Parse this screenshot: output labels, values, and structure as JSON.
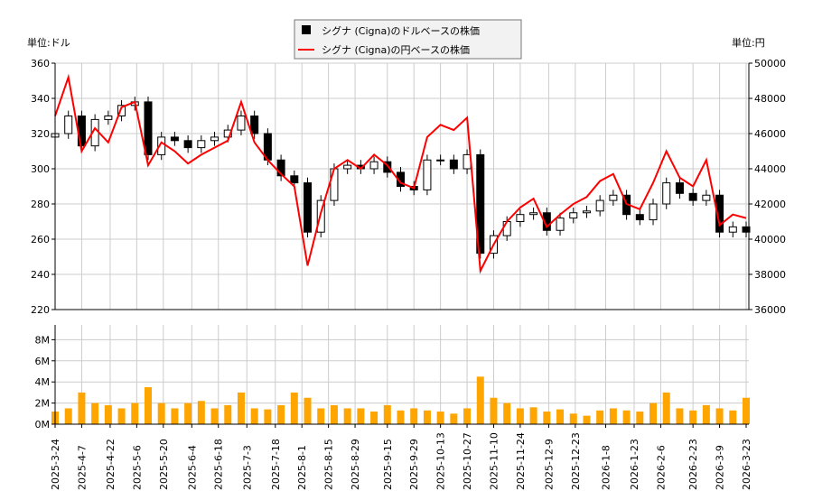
{
  "chart_data": [
    {
      "type": "candlestick+line",
      "left_unit_label": "単位:ドル",
      "right_unit_label": "単位:円",
      "legend": [
        {
          "label": "シグナ (Cigna)のドルベースの株価",
          "color": "#000000",
          "marker": "square"
        },
        {
          "label": "シグナ (Cigna)の円ベースの株価",
          "color": "#ff0000",
          "marker": "line"
        }
      ],
      "legend_placement": "top-center",
      "grid": true,
      "ylim_left": [
        220,
        360
      ],
      "ylim_right": [
        36000,
        50000
      ],
      "yticks_left": [
        "360",
        "340",
        "320",
        "300",
        "280",
        "260",
        "240",
        "220"
      ],
      "yticks_right": [
        "50000",
        "48000",
        "46000",
        "44000",
        "42000",
        "40000",
        "38000",
        "36000"
      ],
      "xticks": [
        "2025-3-24",
        "2025-4-7",
        "2025-4-22",
        "2025-5-6",
        "2025-5-20",
        "2025-6-4",
        "2025-6-18",
        "2025-7-3",
        "2025-7-18",
        "2025-8-1",
        "2025-8-15",
        "2025-8-29",
        "2025-9-15",
        "2025-9-29",
        "2025-10-13",
        "2025-10-27",
        "2025-11-10",
        "2025-11-24",
        "2025-12-9",
        "2025-12-23",
        "2026-1-8",
        "2026-1-23",
        "2026-2-6",
        "2026-2-23",
        "2026-3-9",
        "2026-3-23"
      ],
      "dates": [
        "2025-03-24",
        "2025-03-31",
        "2025-04-07",
        "2025-04-14",
        "2025-04-21",
        "2025-04-28",
        "2025-05-05",
        "2025-05-12",
        "2025-05-19",
        "2025-05-26",
        "2025-06-02",
        "2025-06-09",
        "2025-06-16",
        "2025-06-23",
        "2025-06-30",
        "2025-07-07",
        "2025-07-14",
        "2025-07-21",
        "2025-07-28",
        "2025-08-04",
        "2025-08-11",
        "2025-08-18",
        "2025-08-25",
        "2025-09-01",
        "2025-09-08",
        "2025-09-15",
        "2025-09-22",
        "2025-09-29",
        "2025-10-06",
        "2025-10-13",
        "2025-10-20",
        "2025-10-27",
        "2025-11-03",
        "2025-11-10",
        "2025-11-17",
        "2025-11-24",
        "2025-12-01",
        "2025-12-08",
        "2025-12-15",
        "2025-12-22",
        "2025-12-29",
        "2026-01-05",
        "2026-01-12",
        "2026-01-19",
        "2026-01-26",
        "2026-02-02",
        "2026-02-09",
        "2026-02-16",
        "2026-02-23",
        "2026-03-02",
        "2026-03-09",
        "2026-03-16",
        "2026-03-23"
      ],
      "usd_close": [
        320,
        330,
        313,
        328,
        330,
        336,
        338,
        308,
        318,
        316,
        312,
        316,
        318,
        322,
        330,
        320,
        305,
        296,
        292,
        264,
        282,
        300,
        302,
        300,
        304,
        298,
        290,
        288,
        305,
        305,
        300,
        308,
        252,
        262,
        270,
        274,
        275,
        265,
        272,
        275,
        276,
        282,
        285,
        274,
        271,
        280,
        292,
        286,
        282,
        285,
        264,
        267,
        264
      ],
      "jpy_close": [
        47000,
        49200,
        45000,
        46300,
        45500,
        47500,
        47800,
        44200,
        45500,
        45000,
        44300,
        44800,
        45200,
        45600,
        47800,
        45500,
        44500,
        43700,
        43000,
        38500,
        41500,
        44000,
        44500,
        44000,
        44800,
        44200,
        43200,
        42900,
        45800,
        46500,
        46200,
        46900,
        38200,
        39700,
        41000,
        41800,
        42300,
        40700,
        41400,
        42000,
        42400,
        43300,
        43700,
        42000,
        41700,
        43200,
        45000,
        43500,
        43000,
        44500,
        40800,
        41400,
        41200
      ]
    },
    {
      "type": "bar",
      "series_color": "#ffa500",
      "ylim": [
        0,
        9.4
      ],
      "yticks": [
        "8M",
        "6M",
        "4M",
        "2M",
        "0M"
      ],
      "volume_millions": [
        1.2,
        1.5,
        3.0,
        2.0,
        1.8,
        1.5,
        2.0,
        3.5,
        2.0,
        1.5,
        2.0,
        2.2,
        1.5,
        1.8,
        3.0,
        1.5,
        1.4,
        1.8,
        3.0,
        2.5,
        1.5,
        1.8,
        1.5,
        1.5,
        1.2,
        1.8,
        1.3,
        1.5,
        1.3,
        1.2,
        1.0,
        1.5,
        4.5,
        2.5,
        2.0,
        1.5,
        1.6,
        1.2,
        1.4,
        1.0,
        0.8,
        1.3,
        1.5,
        1.3,
        1.2,
        2.0,
        3.0,
        1.5,
        1.3,
        1.8,
        1.5,
        1.3,
        2.5
      ]
    }
  ]
}
